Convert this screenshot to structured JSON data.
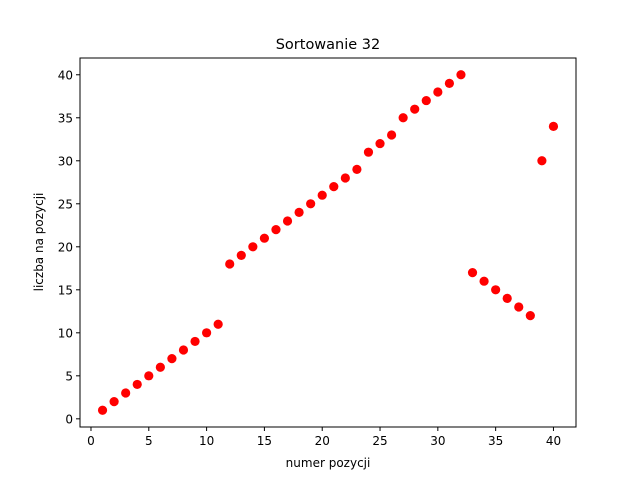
{
  "chart_data": {
    "type": "scatter",
    "title": "Sortowanie 32",
    "xlabel": "numer pozycji",
    "ylabel": "liczba na pozycji",
    "xlim": [
      -0.95,
      41.95
    ],
    "ylim": [
      -0.95,
      41.95
    ],
    "xticks": [
      0,
      5,
      10,
      15,
      20,
      25,
      30,
      35,
      40
    ],
    "yticks": [
      0,
      5,
      10,
      15,
      20,
      25,
      30,
      35,
      40
    ],
    "grid": false,
    "marker_color": "#ff0000",
    "series": [
      {
        "x": [
          1,
          2,
          3,
          4,
          5,
          6,
          7,
          8,
          9,
          10,
          11,
          12,
          13,
          14,
          15,
          16,
          17,
          18,
          19,
          20,
          21,
          22,
          23,
          24,
          25,
          26,
          27,
          28,
          29,
          30,
          31,
          32,
          33,
          34,
          35,
          36,
          37,
          38,
          39,
          40
        ],
        "y": [
          1,
          2,
          3,
          4,
          5,
          6,
          7,
          8,
          9,
          10,
          11,
          18,
          19,
          20,
          21,
          22,
          23,
          24,
          25,
          26,
          27,
          28,
          29,
          31,
          32,
          33,
          35,
          36,
          37,
          38,
          39,
          40,
          17,
          16,
          15,
          14,
          13,
          12,
          30,
          34
        ]
      }
    ]
  }
}
